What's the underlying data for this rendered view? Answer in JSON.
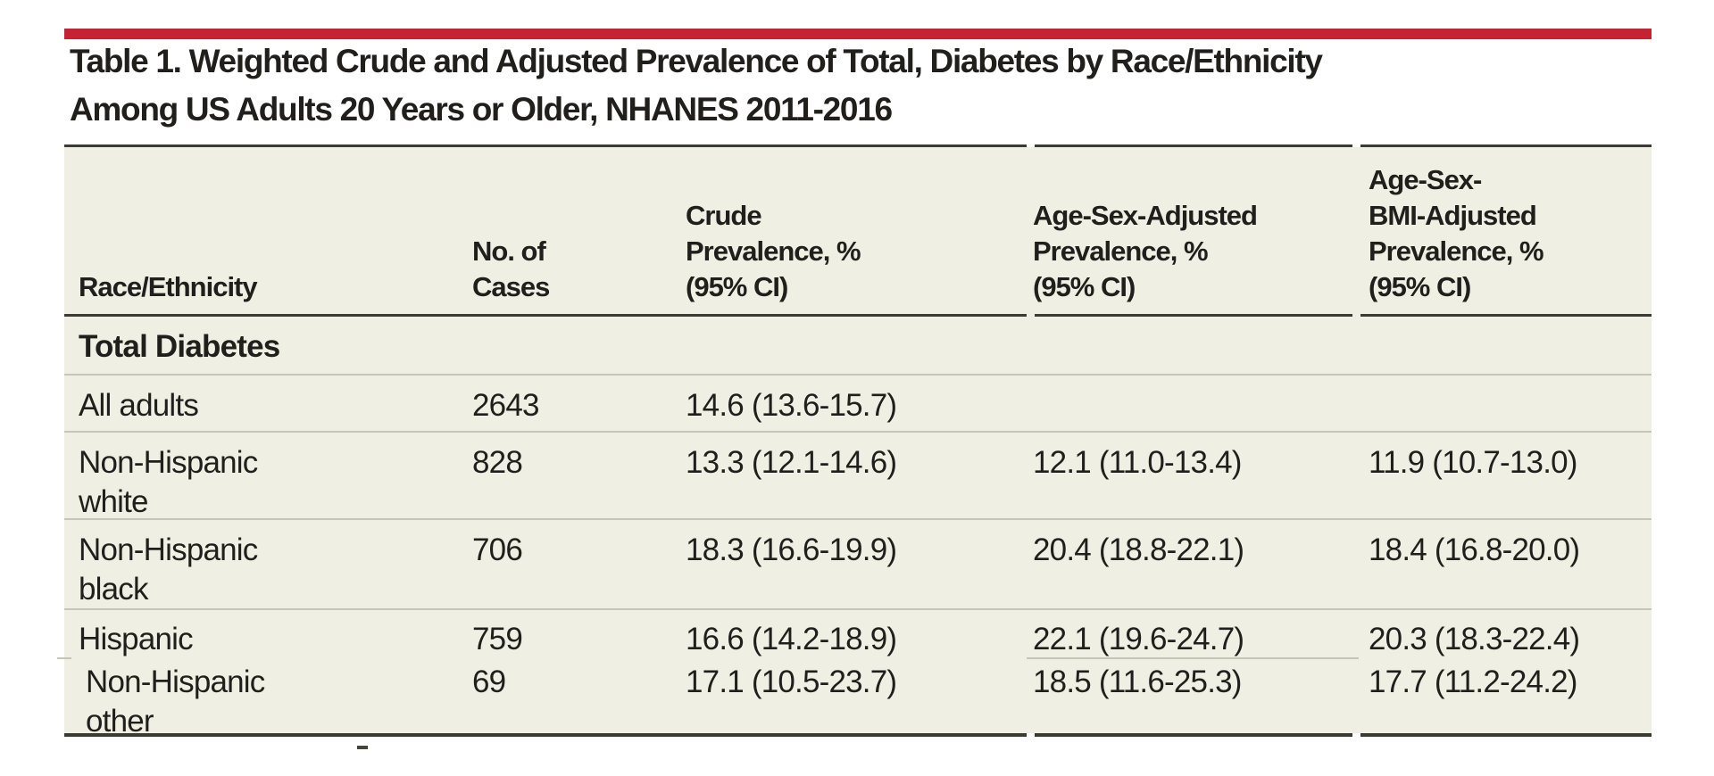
{
  "colors": {
    "accent": "#c52233",
    "table_bg": "#f0efe4",
    "heavy_rule": "#3b3a33",
    "light_rule": "#c6c5b6",
    "text": "#211f1b"
  },
  "table": {
    "title_line1": "Table 1. Weighted Crude and Adjusted Prevalence of Total, Diabetes by Race/Ethnicity",
    "title_line2": "Among US Adults 20 Years or Older, NHANES 2011-2016",
    "columns": {
      "race": "Race/Ethnicity",
      "cases": "No. of\nCases",
      "crude": "Crude\nPrevalence, %\n(95% CI)",
      "adjusted": "Age-Sex-Adjusted\nPrevalence, %\n(95% CI)",
      "bmi_adjusted": "Age-Sex-\nBMI-Adjusted\nPrevalence, %\n(95% CI)"
    },
    "section_label": "Total Diabetes",
    "rows": [
      {
        "label": "All adults",
        "cases": "2643",
        "crude": "14.6 (13.6-15.7)",
        "adjusted": "",
        "bmi_adjusted": ""
      },
      {
        "label": "Non-Hispanic\nwhite",
        "cases": "828",
        "crude": "13.3 (12.1-14.6)",
        "adjusted": "12.1 (11.0-13.4)",
        "bmi_adjusted": "11.9 (10.7-13.0)"
      },
      {
        "label": "Non-Hispanic\nblack",
        "cases": "706",
        "crude": "18.3 (16.6-19.9)",
        "adjusted": "20.4 (18.8-22.1)",
        "bmi_adjusted": "18.4 (16.8-20.0)"
      },
      {
        "label": "Hispanic",
        "cases": "759",
        "crude": "16.6 (14.2-18.9)",
        "adjusted": "22.1 (19.6-24.7)",
        "bmi_adjusted": "20.3 (18.3-22.4)"
      },
      {
        "label": "Non-Hispanic\nother",
        "cases": "69",
        "crude": "17.1 (10.5-23.7)",
        "adjusted": "18.5 (11.6-25.3)",
        "bmi_adjusted": "17.7 (11.2-24.2)"
      }
    ]
  }
}
